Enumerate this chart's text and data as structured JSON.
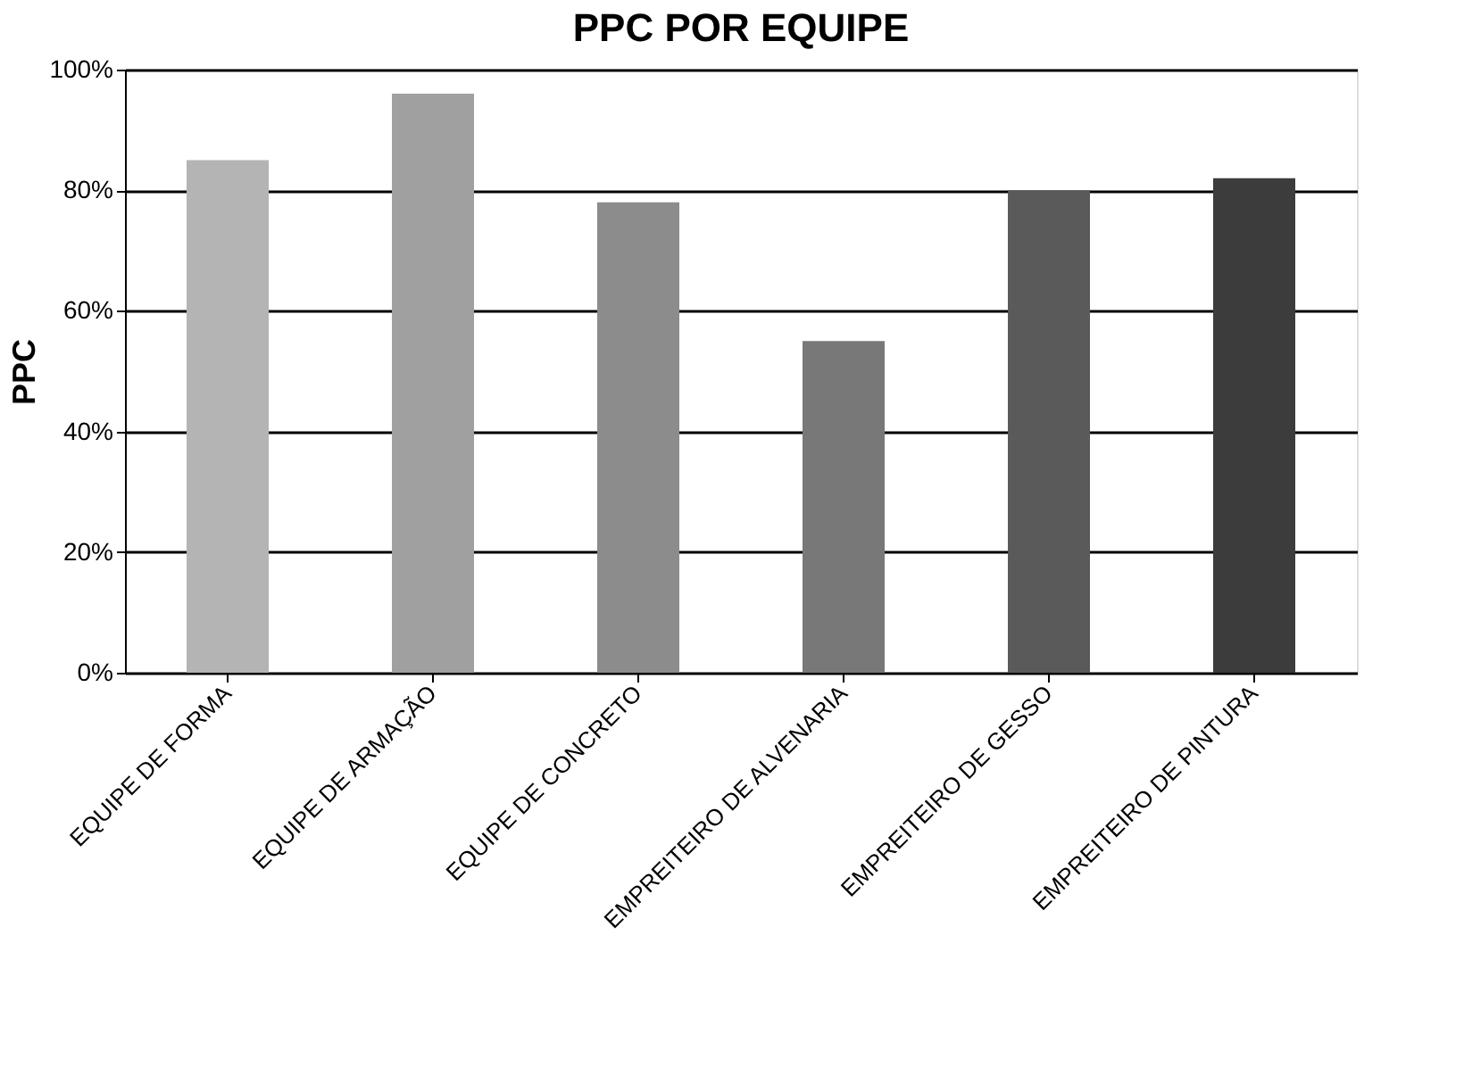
{
  "chart_data": {
    "type": "bar",
    "title": "PPC POR EQUIPE",
    "ylabel": "PPC",
    "categories": [
      "EQUIPE DE FORMA",
      "EQUIPE DE ARMAÇÃO",
      "EQUIPE DE CONCRETO",
      "EMPREITEIRO DE ALVENARIA",
      "EMPREITEIRO DE GESSO",
      "EMPREITEIRO DE PINTURA"
    ],
    "values": [
      85,
      96,
      78,
      55,
      80,
      82
    ],
    "colors": [
      "#b4b4b4",
      "#a0a0a0",
      "#8c8c8c",
      "#787878",
      "#5a5a5a",
      "#3c3c3c"
    ],
    "ylim": [
      0,
      100
    ],
    "yticks": [
      {
        "value": 0,
        "label": "0%"
      },
      {
        "value": 20,
        "label": "20%"
      },
      {
        "value": 40,
        "label": "40%"
      },
      {
        "value": 60,
        "label": "60%"
      },
      {
        "value": 80,
        "label": "80%"
      },
      {
        "value": 100,
        "label": "100%"
      }
    ],
    "grid": "y",
    "legend": false
  }
}
